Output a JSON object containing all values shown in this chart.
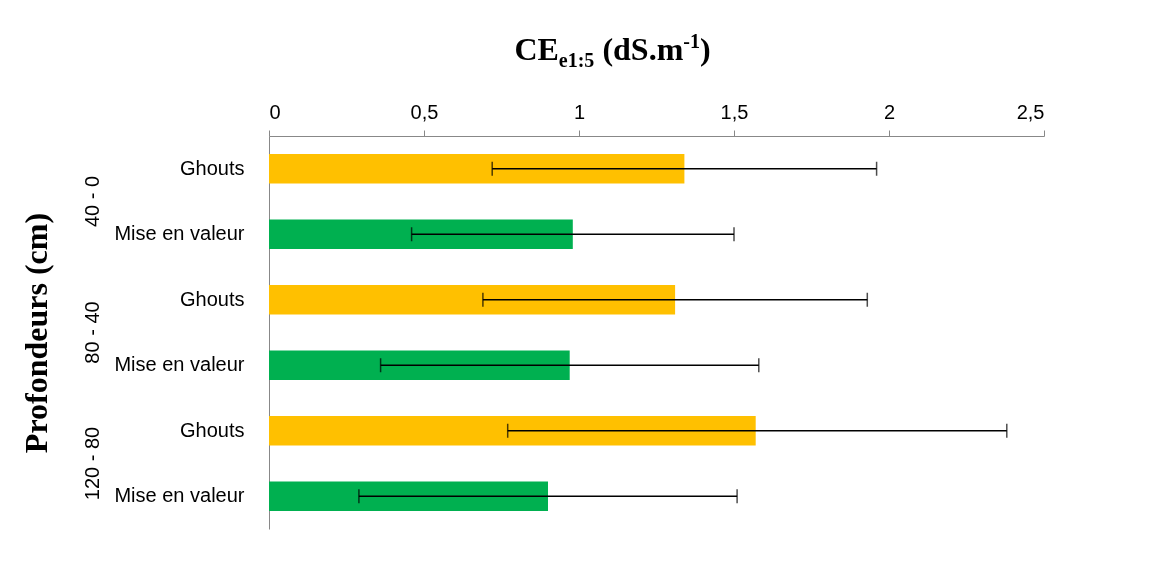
{
  "chart_data": {
    "type": "bar",
    "orientation": "horizontal",
    "title": "CE$_{e1:5}$ (dS.m$^{-1}$)",
    "ylabel": "Profondeurs (cm)",
    "categories": [
      "Ghouts",
      "Mise en valeur",
      "Ghouts",
      "Mise en valeur",
      "Ghouts",
      "Mise en valeur"
    ],
    "values": [
      1.34,
      0.98,
      1.31,
      0.97,
      1.57,
      0.9
    ],
    "colors": [
      "#ffc000",
      "#00b050",
      "#ffc000",
      "#00b050",
      "#ffc000",
      "#00b050"
    ],
    "errors": [
      [
        0.72,
        1.96
      ],
      [
        0.46,
        1.5
      ],
      [
        0.69,
        1.93
      ],
      [
        0.36,
        1.58
      ],
      [
        0.77,
        2.38
      ],
      [
        0.29,
        1.51
      ]
    ],
    "xlim": [
      0,
      2.5
    ],
    "xticks": [
      0,
      {
        "value": 0.5,
        "label": "0,5"
      },
      1,
      {
        "value": 1.5,
        "label": "1,5"
      },
      2,
      {
        "value": 2.5,
        "label": "2,5"
      }
    ],
    "annotations": [
      "40 - 0",
      "80 - 40",
      "120 - 80"
    ],
    "grid": false
  }
}
